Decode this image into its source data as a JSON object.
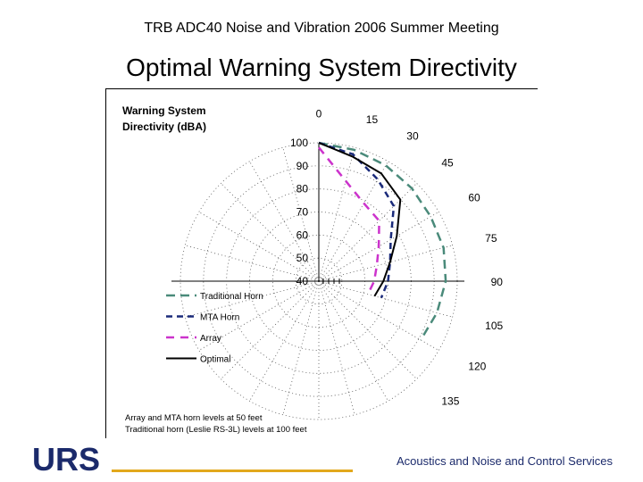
{
  "header": "TRB ADC40 Noise and Vibration 2006 Summer Meeting",
  "title": "Optimal Warning System Directivity",
  "logo_text": "URS",
  "footer": "Acoustics and Noise and Control Services",
  "chart_data": {
    "type": "polar-line",
    "title": [
      "Warning System",
      "Directivity (dBA)"
    ],
    "angle_labels": [
      "0",
      "15",
      "30",
      "45",
      "60",
      "75",
      "90",
      "105",
      "120",
      "135"
    ],
    "radial_labels": [
      "100",
      "90",
      "80",
      "70",
      "60",
      "50",
      "40"
    ],
    "radial_range": [
      40,
      100
    ],
    "angles": [
      0,
      15,
      30,
      45,
      60,
      75,
      90,
      105,
      120,
      135
    ],
    "series": [
      {
        "name": "Traditional Horn",
        "style": "dash-long",
        "color": "#4a8a7a",
        "values": [
          100,
          99,
          98,
          97,
          96,
          96,
          95,
          93,
          91,
          null
        ]
      },
      {
        "name": "MTA Horn",
        "style": "dash-short",
        "color": "#1a2a7a",
        "values": [
          100,
          97,
          91,
          86,
          76,
          72,
          70,
          68,
          null,
          null
        ]
      },
      {
        "name": "Array",
        "style": "dash-mid",
        "color": "#cc33cc",
        "values": [
          98,
          85,
          79,
          77,
          70,
          66,
          64,
          62,
          null,
          null
        ]
      },
      {
        "name": "Optimal",
        "style": "solid",
        "color": "#000000",
        "values": [
          100,
          96,
          94,
          90,
          79,
          72,
          68,
          65,
          null,
          null
        ]
      }
    ],
    "notes": [
      "Array and MTA horn levels at 50 feet",
      "Traditional horn (Leslie RS-3L) levels at 100 feet"
    ]
  }
}
